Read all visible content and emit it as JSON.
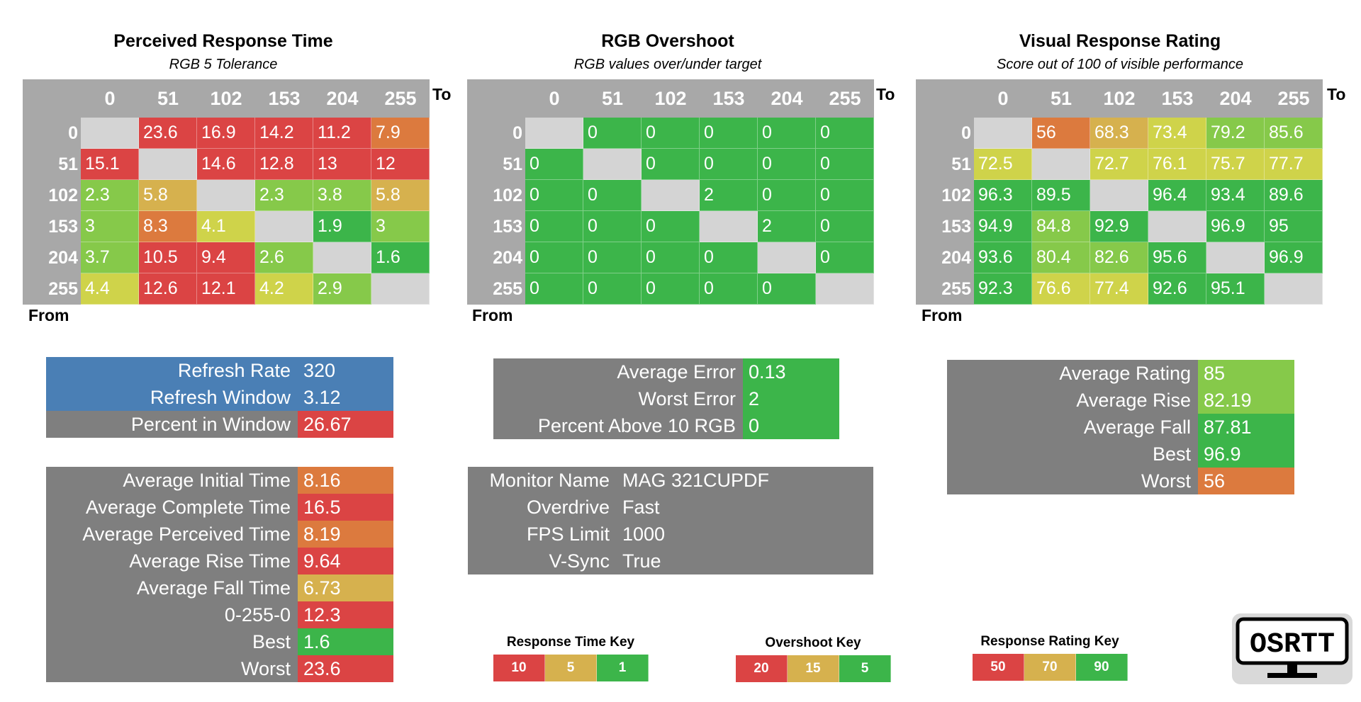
{
  "colors": {
    "red": "#db4444",
    "orange": "#dc7a3e",
    "yellow": "#d6b14e",
    "lime": "#cfd34a",
    "lightgreen": "#86c94a",
    "green": "#3cb54a",
    "diag": "#d4d4d4",
    "header_gray": "#a8a8a8",
    "panel_gray": "#7f7f7f",
    "blue": "#4a7fb5"
  },
  "labels": {
    "to": "To",
    "from": "From"
  },
  "chart_data": [
    {
      "type": "heatmap",
      "title": "Perceived Response Time",
      "subtitle": "RGB 5 Tolerance",
      "xlabel": "To",
      "ylabel": "From",
      "columns": [
        "0",
        "51",
        "102",
        "153",
        "204",
        "255"
      ],
      "rows": [
        "0",
        "51",
        "102",
        "153",
        "204",
        "255"
      ],
      "values": [
        [
          "",
          "23.6",
          "16.9",
          "14.2",
          "11.2",
          "7.9"
        ],
        [
          "15.1",
          "",
          "14.6",
          "12.8",
          "13",
          "12"
        ],
        [
          "2.3",
          "5.8",
          "",
          "2.3",
          "3.8",
          "5.8"
        ],
        [
          "3",
          "8.3",
          "4.1",
          "",
          "1.9",
          "3"
        ],
        [
          "3.7",
          "10.5",
          "9.4",
          "2.6",
          "",
          "1.6"
        ],
        [
          "4.4",
          "12.6",
          "12.1",
          "4.2",
          "2.9",
          ""
        ]
      ],
      "colors": [
        [
          "diag",
          "red",
          "red",
          "red",
          "red",
          "orange"
        ],
        [
          "red",
          "diag",
          "red",
          "red",
          "red",
          "red"
        ],
        [
          "lightgreen",
          "yellow",
          "diag",
          "lightgreen",
          "lightgreen",
          "yellow"
        ],
        [
          "lightgreen",
          "orange",
          "lime",
          "diag",
          "green",
          "lightgreen"
        ],
        [
          "lightgreen",
          "red",
          "red",
          "lightgreen",
          "diag",
          "green"
        ],
        [
          "lime",
          "red",
          "red",
          "lime",
          "lightgreen",
          "diag"
        ]
      ]
    },
    {
      "type": "heatmap",
      "title": "RGB Overshoot",
      "subtitle": "RGB values over/under target",
      "xlabel": "To",
      "ylabel": "From",
      "columns": [
        "0",
        "51",
        "102",
        "153",
        "204",
        "255"
      ],
      "rows": [
        "0",
        "51",
        "102",
        "153",
        "204",
        "255"
      ],
      "values": [
        [
          "",
          "0",
          "0",
          "0",
          "0",
          "0"
        ],
        [
          "0",
          "",
          "0",
          "0",
          "0",
          "0"
        ],
        [
          "0",
          "0",
          "",
          "2",
          "0",
          "0"
        ],
        [
          "0",
          "0",
          "0",
          "",
          "2",
          "0"
        ],
        [
          "0",
          "0",
          "0",
          "0",
          "",
          "0"
        ],
        [
          "0",
          "0",
          "0",
          "0",
          "0",
          ""
        ]
      ],
      "colors": [
        [
          "diag",
          "green",
          "green",
          "green",
          "green",
          "green"
        ],
        [
          "green",
          "diag",
          "green",
          "green",
          "green",
          "green"
        ],
        [
          "green",
          "green",
          "diag",
          "green",
          "green",
          "green"
        ],
        [
          "green",
          "green",
          "green",
          "diag",
          "green",
          "green"
        ],
        [
          "green",
          "green",
          "green",
          "green",
          "diag",
          "green"
        ],
        [
          "green",
          "green",
          "green",
          "green",
          "green",
          "diag"
        ]
      ]
    },
    {
      "type": "heatmap",
      "title": "Visual Response Rating",
      "subtitle": "Score out of 100 of visible performance",
      "xlabel": "To",
      "ylabel": "From",
      "columns": [
        "0",
        "51",
        "102",
        "153",
        "204",
        "255"
      ],
      "rows": [
        "0",
        "51",
        "102",
        "153",
        "204",
        "255"
      ],
      "values": [
        [
          "",
          "56",
          "68.3",
          "73.4",
          "79.2",
          "85.6"
        ],
        [
          "72.5",
          "",
          "72.7",
          "76.1",
          "75.7",
          "77.7"
        ],
        [
          "96.3",
          "89.5",
          "",
          "96.4",
          "93.4",
          "89.6"
        ],
        [
          "94.9",
          "84.8",
          "92.9",
          "",
          "96.9",
          "95"
        ],
        [
          "93.6",
          "80.4",
          "82.6",
          "95.6",
          "",
          "96.9"
        ],
        [
          "92.3",
          "76.6",
          "77.4",
          "92.6",
          "95.1",
          ""
        ]
      ],
      "colors": [
        [
          "diag",
          "orange",
          "yellow",
          "lime",
          "lightgreen",
          "lightgreen"
        ],
        [
          "lime",
          "diag",
          "lime",
          "lime",
          "lime",
          "lime"
        ],
        [
          "green",
          "green",
          "diag",
          "green",
          "green",
          "green"
        ],
        [
          "green",
          "lightgreen",
          "green",
          "diag",
          "green",
          "green"
        ],
        [
          "green",
          "lightgreen",
          "lightgreen",
          "green",
          "diag",
          "green"
        ],
        [
          "green",
          "lime",
          "lime",
          "green",
          "green",
          "diag"
        ]
      ]
    }
  ],
  "refresh_stats": [
    {
      "label": "Refresh Rate",
      "value": "320",
      "bg": "blue",
      "vbg": "blue"
    },
    {
      "label": "Refresh Window",
      "value": "3.12",
      "bg": "blue",
      "vbg": "blue"
    },
    {
      "label": "Percent in Window",
      "value": "26.67",
      "bg": "panel_gray",
      "vbg": "red"
    }
  ],
  "time_stats": [
    {
      "label": "Average Initial Time",
      "value": "8.16",
      "vbg": "orange"
    },
    {
      "label": "Average Complete Time",
      "value": "16.5",
      "vbg": "red"
    },
    {
      "label": "Average Perceived Time",
      "value": "8.19",
      "vbg": "orange"
    },
    {
      "label": "Average Rise Time",
      "value": "9.64",
      "vbg": "red"
    },
    {
      "label": "Average Fall Time",
      "value": "6.73",
      "vbg": "yellow"
    },
    {
      "label": "0-255-0",
      "value": "12.3",
      "vbg": "red"
    },
    {
      "label": "Best",
      "value": "1.6",
      "vbg": "green"
    },
    {
      "label": "Worst",
      "value": "23.6",
      "vbg": "red"
    }
  ],
  "overshoot_stats": [
    {
      "label": "Average Error",
      "value": "0.13",
      "vbg": "green"
    },
    {
      "label": "Worst Error",
      "value": "2",
      "vbg": "green"
    },
    {
      "label": "Percent Above 10 RGB",
      "value": "0",
      "vbg": "green"
    }
  ],
  "monitor_info": [
    {
      "label": "Monitor Name",
      "value": "MAG 321CUPDF"
    },
    {
      "label": "Overdrive",
      "value": "Fast"
    },
    {
      "label": "FPS Limit",
      "value": "1000"
    },
    {
      "label": "V-Sync",
      "value": "True"
    }
  ],
  "rating_stats": [
    {
      "label": "Average Rating",
      "value": "85",
      "vbg": "lightgreen"
    },
    {
      "label": "Average Rise",
      "value": "82.19",
      "vbg": "lightgreen"
    },
    {
      "label": "Average Fall",
      "value": "87.81",
      "vbg": "green"
    },
    {
      "label": "Best",
      "value": "96.9",
      "vbg": "green"
    },
    {
      "label": "Worst",
      "value": "56",
      "vbg": "orange"
    }
  ],
  "keys": [
    {
      "title": "Response Time Key",
      "items": [
        {
          "text": "10",
          "color": "red"
        },
        {
          "text": "5",
          "color": "yellow"
        },
        {
          "text": "1",
          "color": "green"
        }
      ]
    },
    {
      "title": "Overshoot Key",
      "items": [
        {
          "text": "20",
          "color": "red"
        },
        {
          "text": "15",
          "color": "yellow"
        },
        {
          "text": "5",
          "color": "green"
        }
      ]
    },
    {
      "title": "Response Rating Key",
      "items": [
        {
          "text": "50",
          "color": "red"
        },
        {
          "text": "70",
          "color": "yellow"
        },
        {
          "text": "90",
          "color": "green"
        }
      ]
    }
  ],
  "logo": {
    "text": "OSRTT"
  }
}
